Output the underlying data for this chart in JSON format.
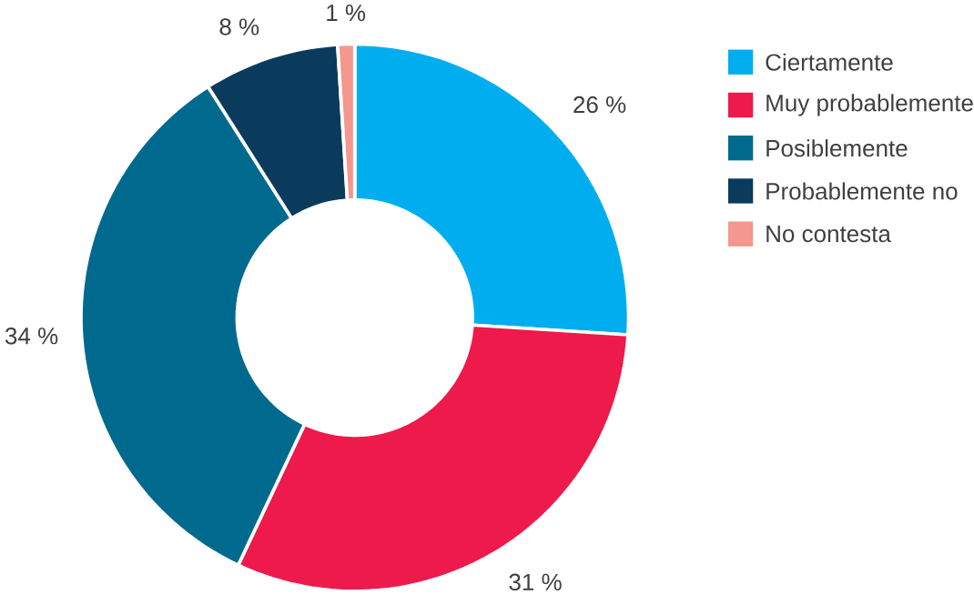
{
  "chart_data": {
    "type": "donut",
    "categories": [
      "Ciertamente",
      "Muy probablemente",
      "Posiblemente",
      "Probablemente no",
      "No contesta"
    ],
    "values": [
      26,
      31,
      34,
      8,
      1
    ],
    "value_labels": [
      "26 %",
      "31 %",
      "34 %",
      "8 %",
      "1 %"
    ],
    "colors": [
      "#00aeef",
      "#ed1a4b",
      "#006a8e",
      "#0b3b5c",
      "#f4978e"
    ],
    "legend": "right"
  }
}
